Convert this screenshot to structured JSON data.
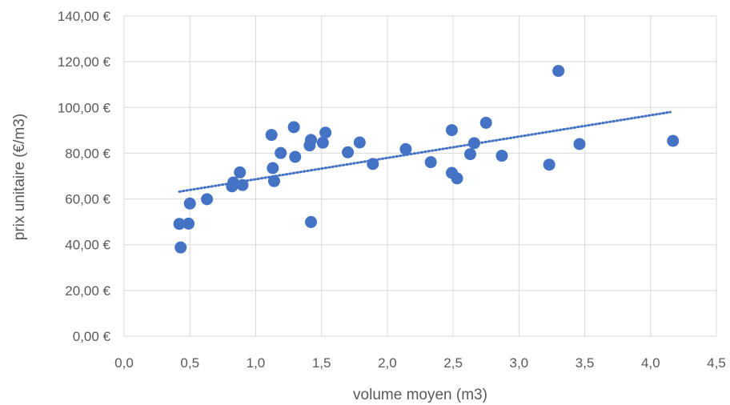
{
  "chart_data": {
    "type": "scatter",
    "title": "",
    "xlabel": "volume moyen (m3)",
    "ylabel": "prix unitaire (€/m3)",
    "xlim": [
      0,
      4.5
    ],
    "ylim": [
      0,
      140
    ],
    "x_ticks": [
      0,
      0.5,
      1.0,
      1.5,
      2.0,
      2.5,
      3.0,
      3.5,
      4.0,
      4.5
    ],
    "x_tick_labels": [
      "0,0",
      "0,5",
      "1,0",
      "1,5",
      "2,0",
      "2,5",
      "3,0",
      "3,5",
      "4,0",
      "4,5"
    ],
    "y_ticks": [
      0,
      20,
      40,
      60,
      80,
      100,
      120,
      140
    ],
    "y_tick_labels": [
      "0,00 €",
      "20,00 €",
      "40,00 €",
      "60,00 €",
      "80,00 €",
      "100,00 €",
      "120,00 €",
      "140,00 €"
    ],
    "grid": "vertical and horizontal",
    "legend": "none",
    "marker_color": "#4472c4",
    "trendline": {
      "type": "linear",
      "style": "dotted",
      "x": [
        0.42,
        4.15
      ],
      "y": [
        63.2,
        98.0
      ]
    },
    "series": [
      {
        "points": [
          [
            0.43,
            38.8
          ],
          [
            0.42,
            49.1
          ],
          [
            0.49,
            49.2
          ],
          [
            0.5,
            58.0
          ],
          [
            0.63,
            59.9
          ],
          [
            0.82,
            65.5
          ],
          [
            0.83,
            67.2
          ],
          [
            0.88,
            71.6
          ],
          [
            0.9,
            66.1
          ],
          [
            1.12,
            88.0
          ],
          [
            1.13,
            73.5
          ],
          [
            1.14,
            67.8
          ],
          [
            1.19,
            80.1
          ],
          [
            1.29,
            91.4
          ],
          [
            1.3,
            78.4
          ],
          [
            1.41,
            83.4
          ],
          [
            1.42,
            85.8
          ],
          [
            1.42,
            49.9
          ],
          [
            1.51,
            84.6
          ],
          [
            1.53,
            89.0
          ],
          [
            1.7,
            80.4
          ],
          [
            1.79,
            84.7
          ],
          [
            1.89,
            75.3
          ],
          [
            2.14,
            81.8
          ],
          [
            2.33,
            76.1
          ],
          [
            2.49,
            90.1
          ],
          [
            2.49,
            71.4
          ],
          [
            2.53,
            69.0
          ],
          [
            2.63,
            79.6
          ],
          [
            2.66,
            84.4
          ],
          [
            2.75,
            93.3
          ],
          [
            2.87,
            78.9
          ],
          [
            3.23,
            75.0
          ],
          [
            3.3,
            116.0
          ],
          [
            3.46,
            84.0
          ],
          [
            4.17,
            85.4
          ]
        ]
      }
    ]
  }
}
